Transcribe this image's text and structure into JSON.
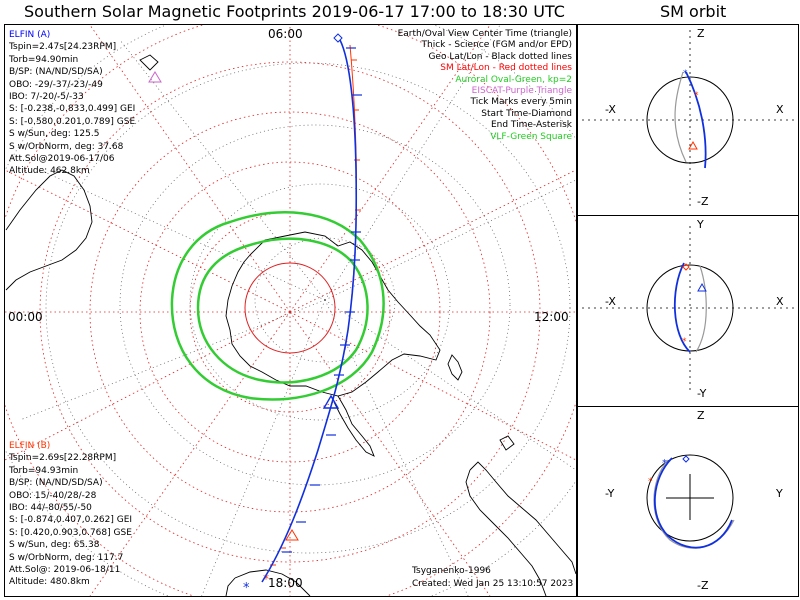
{
  "title": "Southern Solar Magnetic Footprints 2019-06-17 17:00 to 18:30 UTC",
  "orbit_title": "SM orbit",
  "map": {
    "mlt_labels": {
      "top": "06:00",
      "left": "00:00",
      "right": "12:00",
      "bottom": "18:00"
    },
    "legend": [
      {
        "text": "Earth/Oval View Center Time (triangle)",
        "color": "#000000"
      },
      {
        "text": "Thick - Science (FGM and/or EPD)",
        "color": "#000000"
      },
      {
        "text": "Geo Lat/Lon - Black dotted lines",
        "color": "#000000"
      },
      {
        "text": "SM Lat/Lon - Red dotted lines",
        "color": "#ff0000"
      },
      {
        "text": "Auroral Oval-Green, kp=2",
        "color": "#22cc22"
      },
      {
        "text": "EISCAT-Purple Triangle",
        "color": "#cc66cc"
      },
      {
        "text": "Tick Marks every 5min",
        "color": "#000000"
      },
      {
        "text": "Start Time-Diamond",
        "color": "#000000"
      },
      {
        "text": "End Time-Asterisk",
        "color": "#000000"
      },
      {
        "text": "VLF-Green Square",
        "color": "#22cc22"
      }
    ],
    "elfin_a": {
      "name": "ELFIN (A)",
      "color": "#0000ff",
      "lines": [
        "Tspin=2.47s[24.23RPM]",
        "Torb=94.90min",
        "B/SP: (NA/ND/SD/SA)",
        "OBO: -29/-37/-23/-49",
        "IBO: 7/-20/-5/-33",
        "S: [-0.238,-0.833,0.499] GEI",
        "S: [-0.580,0.201,0.789] GSE",
        "S w/Sun, deg: 125.5",
        "S w/OrbNorm, deg: 37.68",
        "Att.Sol@2019-06-17/06",
        "Altitude: 462.8km"
      ]
    },
    "elfin_b": {
      "name": "ELFIN (B)",
      "color": "#ff3300",
      "lines": [
        "Tspin=2.69s[22.28RPM]",
        "Torb=94.93min",
        "B/SP: (NA/ND/SD/SA)",
        "OBO: 15/-40/28/-28",
        "IBO: 44/-80/55/-50",
        "S: [-0.874,0.407,0.262] GEI",
        "S: [0.420,0.903,0.768] GSE",
        "S w/Sun, deg: 65.38",
        "S w/OrbNorm, deg: 117.7",
        "Att.Sol@: 2019-06-18/11",
        "Altitude: 480.8km"
      ]
    },
    "credit": "Tsyganenko-1996",
    "created": "Created: Wed Jan 25 13:10:57 2023"
  },
  "orbit_panels": [
    {
      "top": "Z",
      "bottom": "-Z",
      "left": "-X",
      "right": "X"
    },
    {
      "top": "Y",
      "bottom": "-Y",
      "left": "-X",
      "right": "X"
    },
    {
      "top": "Z",
      "bottom": "-Z",
      "left": "-Y",
      "right": "Y"
    }
  ],
  "chart_data": {
    "type": "polar-map",
    "title": "Southern Solar Magnetic Footprints 2019-06-17 17:00 to 18:30 UTC",
    "projection": "south polar, magnetic local time",
    "mlt_orientation": {
      "top": "06:00",
      "left": "00:00",
      "right": "12:00",
      "bottom": "18:00"
    },
    "sm_grid": "red dotted",
    "geo_grid": "black dotted",
    "auroral_oval": {
      "kp": 2,
      "color": "green"
    },
    "series": [
      {
        "name": "ELFIN (A)",
        "color": "#0000ff",
        "time_range": "17:00 to 18:30 UTC",
        "tick_interval_min": 5
      },
      {
        "name": "ELFIN (B)",
        "color": "#ff3300",
        "time_range": "17:00 to 18:30 UTC",
        "tick_interval_min": 5
      }
    ],
    "model": "Tsyganenko-1996"
  }
}
